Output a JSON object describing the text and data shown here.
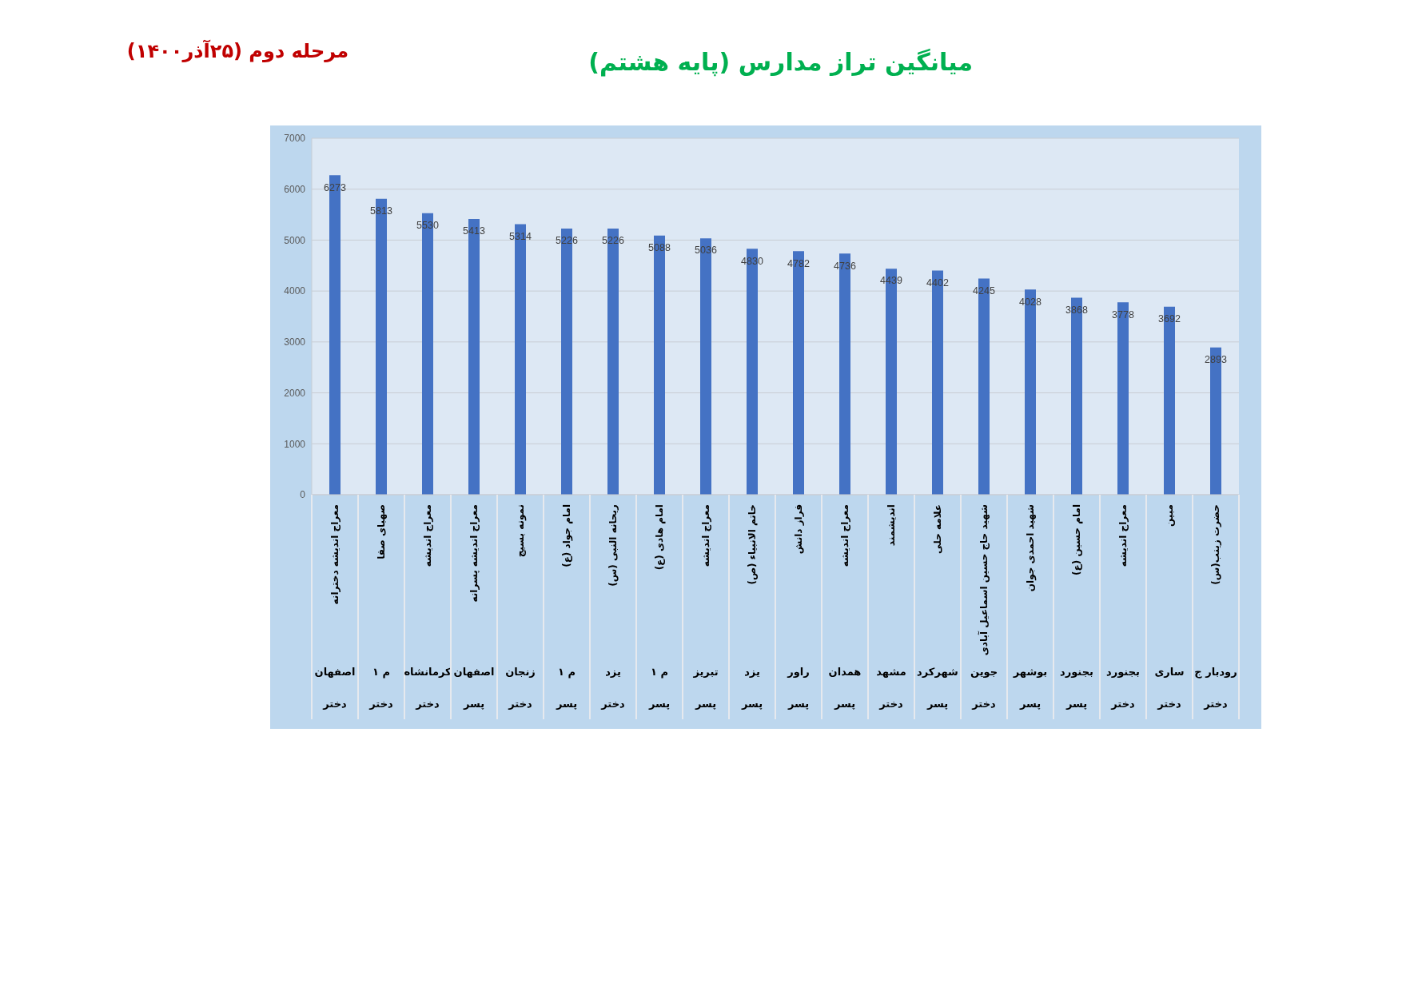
{
  "chart_data": {
    "type": "bar",
    "title": "میانگین تراز مدارس (پایه هشتم)",
    "subtitle": "مرحله دوم (۲۵آذر۱۴۰۰)",
    "categories": [
      "معراج اندیشه دخترانه\nاصفهان\nدختر",
      "صهبای صفا\nم ۱\nدختر",
      "معراج اندیشه\nکرمانشاه\nدختر",
      "معراج اندیشه پسرانه\nاصفهان\nپسر",
      "نمونه بسیج\nزنجان\nدختر",
      "امام جواد (ع)\nم ۱\nپسر",
      "ریحانه النبی (س)\nیزد\nدختر",
      "امام هادی (ع)\nم ۱\nپسر",
      "معراج اندیشه\nتبریز\nپسر",
      "خاتم الانبیاء (ص)\nیزد\nپسر",
      "فراز دانش\nراور\nپسر",
      "معراج اندیشه\nهمدان\nپسر",
      "اندیشمند\nمشهد\nدختر",
      "علامه حلی\nشهرکرد\nپسر",
      "شهید حاج حسین اسماعیل آبادی\nجوین\nدختر",
      "شهید احمدی جوان\nبوشهر\nپسر",
      "امام حسین (ع)\nبجنورد\nپسر",
      "معراج اندیشه\nبجنورد\nدختر",
      "مبین\nساری\nدختر",
      "حضرت زینب(س)\nرودبار ج\nدختر"
    ],
    "values": [
      6273,
      5813,
      5530,
      5413,
      5314,
      5226,
      5226,
      5088,
      5036,
      4830,
      4782,
      4736,
      4439,
      4402,
      4245,
      4028,
      3868,
      3778,
      3692,
      2893
    ],
    "color": "#4472c4",
    "ylim": [
      0,
      7000
    ],
    "yticks": [
      0,
      1000,
      2000,
      3000,
      4000,
      5000,
      6000,
      7000
    ],
    "grid": "y",
    "data_labels": true
  }
}
